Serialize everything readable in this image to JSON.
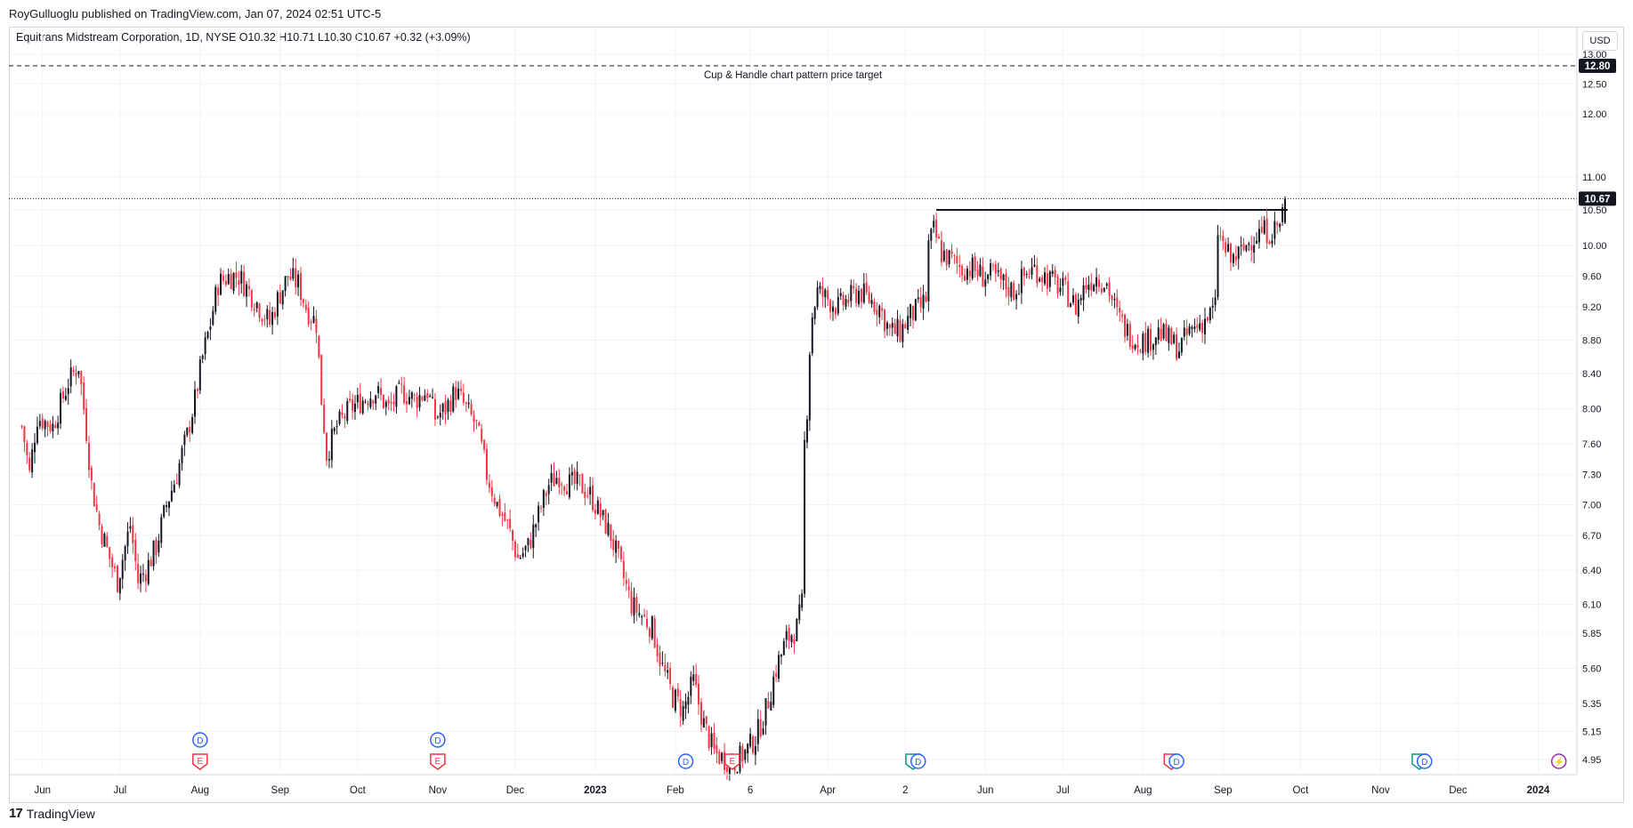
{
  "header": {
    "published": "RoyGulluoglu published on TradingView.com, Jan 07, 2024 02:51 UTC-5",
    "legend": "Equitrans Midstream Corporation, 1D, NYSE  O10.32  H10.71  L10.30  C10.67  +0.32 (+3.09%)",
    "currency": "USD"
  },
  "footer": {
    "logo_text": "TradingView",
    "logo_icon": "tradingview-logo-icon"
  },
  "colors": {
    "up": "#131722",
    "down": "#f23645",
    "grid": "#f0f3fa",
    "badge_bg": "#131722",
    "badge_text": "#ffffff"
  },
  "chart_data": {
    "type": "candlestick",
    "title": "",
    "symbol": "Equitrans Midstream Corporation",
    "interval": "1D",
    "exchange": "NYSE",
    "last": {
      "open": 10.32,
      "high": 10.71,
      "low": 10.3,
      "close": 10.67,
      "change": 0.32,
      "change_pct": 3.09
    },
    "y_ticks": [
      4.95,
      5.15,
      5.35,
      5.6,
      5.85,
      6.1,
      6.4,
      6.7,
      7.0,
      7.3,
      7.6,
      8.0,
      8.4,
      8.8,
      9.2,
      9.6,
      10.0,
      10.5,
      11.0,
      12.0,
      12.5,
      13.0
    ],
    "y_tick_labels": [
      "4.95",
      "5.15",
      "5.35",
      "5.60",
      "5.85",
      "6.10",
      "6.40",
      "6.70",
      "7.00",
      "7.30",
      "7.60",
      "8.00",
      "8.40",
      "8.80",
      "9.20",
      "9.60",
      "10.00",
      "10.50",
      "11.00",
      "12.00",
      "12.50",
      "13.00"
    ],
    "x_labels": [
      {
        "label": "Jun",
        "day": 8
      },
      {
        "label": "Jul",
        "day": 38
      },
      {
        "label": "Aug",
        "day": 69
      },
      {
        "label": "Sep",
        "day": 100
      },
      {
        "label": "Oct",
        "day": 130
      },
      {
        "label": "Nov",
        "day": 161
      },
      {
        "label": "Dec",
        "day": 191
      },
      {
        "label": "2023",
        "day": 222
      },
      {
        "label": "Feb",
        "day": 253
      },
      {
        "label": "6",
        "day": 282
      },
      {
        "label": "Apr",
        "day": 312
      },
      {
        "label": "2",
        "day": 342
      },
      {
        "label": "Jun",
        "day": 373
      },
      {
        "label": "Jul",
        "day": 403
      },
      {
        "label": "Aug",
        "day": 434
      },
      {
        "label": "Sep",
        "day": 465
      },
      {
        "label": "Oct",
        "day": 495
      },
      {
        "label": "Nov",
        "day": 526
      },
      {
        "label": "Dec",
        "day": 556
      },
      {
        "label": "2024",
        "day": 587
      }
    ],
    "x_range": [
      -5,
      602
    ],
    "y_range": [
      4.87,
      13.05
    ],
    "grid": true,
    "price_trajectory": [
      [
        0,
        7.8
      ],
      [
        3,
        7.3
      ],
      [
        6,
        7.9
      ],
      [
        12,
        7.8
      ],
      [
        18,
        8.3
      ],
      [
        22,
        8.5
      ],
      [
        24,
        8.0
      ],
      [
        27,
        7.2
      ],
      [
        30,
        6.8
      ],
      [
        34,
        6.5
      ],
      [
        37,
        6.3
      ],
      [
        42,
        6.8
      ],
      [
        45,
        6.3
      ],
      [
        48,
        6.4
      ],
      [
        52,
        6.6
      ],
      [
        56,
        7.0
      ],
      [
        60,
        7.3
      ],
      [
        64,
        7.7
      ],
      [
        67,
        8.1
      ],
      [
        70,
        8.6
      ],
      [
        73,
        9.0
      ],
      [
        76,
        9.5
      ],
      [
        80,
        9.6
      ],
      [
        84,
        9.6
      ],
      [
        88,
        9.4
      ],
      [
        92,
        9.2
      ],
      [
        96,
        9.0
      ],
      [
        99,
        9.3
      ],
      [
        103,
        9.6
      ],
      [
        107,
        9.5
      ],
      [
        110,
        9.2
      ],
      [
        114,
        9.0
      ],
      [
        116,
        8.1
      ],
      [
        118,
        7.5
      ],
      [
        122,
        7.8
      ],
      [
        127,
        8.0
      ],
      [
        132,
        8.1
      ],
      [
        137,
        8.2
      ],
      [
        142,
        8.0
      ],
      [
        147,
        8.2
      ],
      [
        152,
        8.1
      ],
      [
        157,
        8.2
      ],
      [
        160,
        7.9
      ],
      [
        164,
        8.0
      ],
      [
        168,
        8.2
      ],
      [
        172,
        8.0
      ],
      [
        176,
        7.8
      ],
      [
        180,
        7.3
      ],
      [
        184,
        7.0
      ],
      [
        188,
        6.8
      ],
      [
        192,
        6.5
      ],
      [
        196,
        6.6
      ],
      [
        200,
        6.9
      ],
      [
        204,
        7.2
      ],
      [
        208,
        7.3
      ],
      [
        212,
        7.2
      ],
      [
        216,
        7.2
      ],
      [
        220,
        7.1
      ],
      [
        224,
        6.9
      ],
      [
        228,
        6.7
      ],
      [
        232,
        6.4
      ],
      [
        236,
        6.1
      ],
      [
        240,
        6.0
      ],
      [
        244,
        5.9
      ],
      [
        248,
        5.6
      ],
      [
        252,
        5.4
      ],
      [
        256,
        5.3
      ],
      [
        260,
        5.5
      ],
      [
        264,
        5.2
      ],
      [
        268,
        5.0
      ],
      [
        272,
        4.95
      ],
      [
        276,
        4.93
      ],
      [
        280,
        5.0
      ],
      [
        284,
        5.1
      ],
      [
        288,
        5.3
      ],
      [
        292,
        5.6
      ],
      [
        296,
        5.8
      ],
      [
        300,
        5.9
      ],
      [
        302,
        6.1
      ],
      [
        303,
        7.6
      ],
      [
        304,
        8.0
      ],
      [
        305,
        8.7
      ],
      [
        306,
        9.1
      ],
      [
        308,
        9.4
      ],
      [
        312,
        9.3
      ],
      [
        316,
        9.2
      ],
      [
        320,
        9.3
      ],
      [
        324,
        9.4
      ],
      [
        328,
        9.3
      ],
      [
        332,
        9.2
      ],
      [
        336,
        8.9
      ],
      [
        340,
        8.9
      ],
      [
        344,
        9.1
      ],
      [
        348,
        9.2
      ],
      [
        350,
        9.3
      ],
      [
        351,
        10.0
      ],
      [
        353,
        10.2
      ],
      [
        356,
        9.9
      ],
      [
        360,
        9.8
      ],
      [
        364,
        9.7
      ],
      [
        368,
        9.7
      ],
      [
        372,
        9.6
      ],
      [
        376,
        9.6
      ],
      [
        380,
        9.5
      ],
      [
        384,
        9.4
      ],
      [
        388,
        9.6
      ],
      [
        392,
        9.7
      ],
      [
        396,
        9.6
      ],
      [
        400,
        9.5
      ],
      [
        404,
        9.4
      ],
      [
        408,
        9.2
      ],
      [
        412,
        9.5
      ],
      [
        416,
        9.6
      ],
      [
        420,
        9.5
      ],
      [
        424,
        9.1
      ],
      [
        428,
        8.9
      ],
      [
        432,
        8.8
      ],
      [
        436,
        8.8
      ],
      [
        440,
        8.9
      ],
      [
        444,
        8.8
      ],
      [
        448,
        8.7
      ],
      [
        452,
        8.9
      ],
      [
        456,
        9.0
      ],
      [
        460,
        9.1
      ],
      [
        462,
        9.2
      ],
      [
        463,
        10.2
      ],
      [
        465,
        10.0
      ],
      [
        468,
        9.8
      ],
      [
        472,
        9.9
      ],
      [
        476,
        10.1
      ],
      [
        480,
        10.2
      ],
      [
        484,
        10.2
      ],
      [
        487,
        10.3
      ],
      [
        489,
        10.67
      ]
    ],
    "series": [
      {
        "name": "Equitrans Midstream Corporation",
        "ohlc": []
      }
    ],
    "annotations": {
      "target_line": {
        "value": 12.8,
        "label": "Cup & Handle chart pattern price target",
        "badge": "12.80"
      },
      "current_price": {
        "value": 10.67,
        "badge": "10.67"
      },
      "resistance_line": {
        "value": 10.5,
        "from_day": 354,
        "to_day": 490
      }
    },
    "events": [
      {
        "type": "D",
        "day": 69,
        "row": 0
      },
      {
        "type": "E",
        "day": 69,
        "row": 1
      },
      {
        "type": "D",
        "day": 161,
        "row": 0
      },
      {
        "type": "E",
        "day": 161,
        "row": 1
      },
      {
        "type": "D",
        "day": 257,
        "row": 1
      },
      {
        "type": "E",
        "day": 275,
        "row": 1
      },
      {
        "type": "E",
        "day": 345,
        "row": 1
      },
      {
        "type": "D",
        "day": 347,
        "row": 1
      },
      {
        "type": "E",
        "day": 445,
        "row": 1
      },
      {
        "type": "D",
        "day": 447,
        "row": 1
      },
      {
        "type": "E",
        "day": 541,
        "row": 1
      },
      {
        "type": "D",
        "day": 543,
        "row": 1
      },
      {
        "type": "S",
        "day": 595,
        "row": 1
      }
    ]
  }
}
